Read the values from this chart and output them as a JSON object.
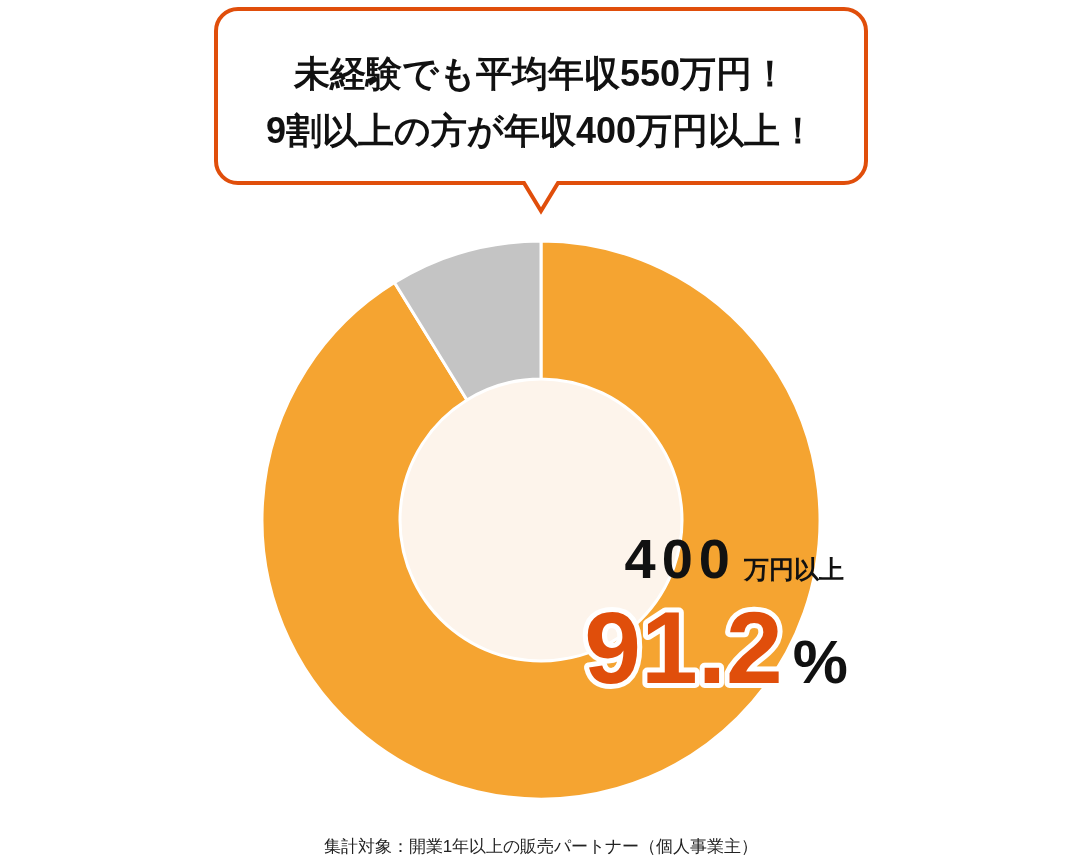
{
  "chart_data": {
    "type": "donut",
    "title": "未経験でも平均年収550万円！",
    "subtitle": "9割以上の方が年収400万円以上！",
    "categories": [
      "400万円以上",
      null
    ],
    "values": [
      91.2,
      8.8
    ],
    "colors": [
      "#f5a431",
      "#c4c4c4"
    ],
    "value_labels": [
      "91.2%",
      null
    ],
    "annotations": [
      "集計対象：開業1年以上の販売パートナー（個人事業主）"
    ]
  }
}
